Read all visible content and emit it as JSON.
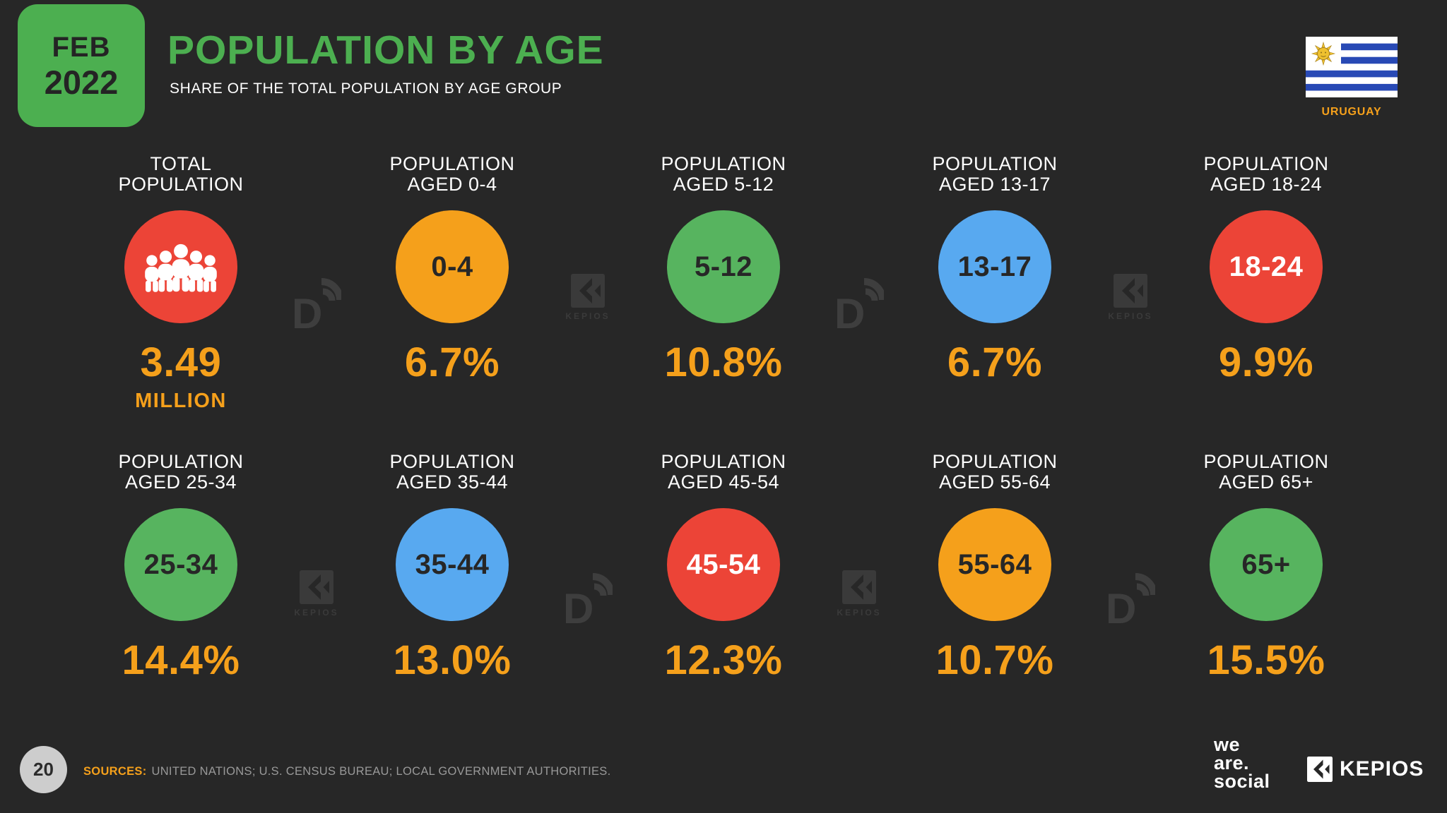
{
  "header": {
    "date_month": "FEB",
    "date_year": "2022",
    "title": "POPULATION BY AGE",
    "subtitle": "SHARE OF THE TOTAL POPULATION BY AGE GROUP",
    "country": "URUGUAY"
  },
  "cards": [
    {
      "title_line1": "TOTAL",
      "title_line2": "POPULATION",
      "circle_color": "red",
      "icon": "people-icon",
      "circle_label": "",
      "value": "3.49",
      "value_suffix": "MILLION"
    },
    {
      "title_line1": "POPULATION",
      "title_line2": "AGED 0-4",
      "circle_color": "orange",
      "circle_label": "0-4",
      "value": "6.7%"
    },
    {
      "title_line1": "POPULATION",
      "title_line2": "AGED 5-12",
      "circle_color": "green",
      "circle_label": "5-12",
      "value": "10.8%"
    },
    {
      "title_line1": "POPULATION",
      "title_line2": "AGED 13-17",
      "circle_color": "blue",
      "circle_label": "13-17",
      "value": "6.7%"
    },
    {
      "title_line1": "POPULATION",
      "title_line2": "AGED 18-24",
      "circle_color": "red",
      "circle_label": "18-24",
      "value": "9.9%"
    },
    {
      "title_line1": "POPULATION",
      "title_line2": "AGED 25-34",
      "circle_color": "green",
      "circle_label": "25-34",
      "value": "14.4%"
    },
    {
      "title_line1": "POPULATION",
      "title_line2": "AGED 35-44",
      "circle_color": "blue",
      "circle_label": "35-44",
      "value": "13.0%"
    },
    {
      "title_line1": "POPULATION",
      "title_line2": "AGED 45-54",
      "circle_color": "red",
      "circle_label": "45-54",
      "value": "12.3%"
    },
    {
      "title_line1": "POPULATION",
      "title_line2": "AGED 55-64",
      "circle_color": "orange",
      "circle_label": "55-64",
      "value": "10.7%"
    },
    {
      "title_line1": "POPULATION",
      "title_line2": "AGED 65+",
      "circle_color": "green",
      "circle_label": "65+",
      "value": "15.5%"
    }
  ],
  "watermarks": [
    {
      "kind": "datareportal"
    },
    {
      "kind": "kepios",
      "label": "KEPIOS"
    },
    {
      "kind": "datareportal"
    },
    {
      "kind": "kepios",
      "label": "KEPIOS"
    },
    {
      "kind": "kepios",
      "label": "KEPIOS"
    },
    {
      "kind": "datareportal"
    },
    {
      "kind": "kepios",
      "label": "KEPIOS"
    },
    {
      "kind": "datareportal"
    }
  ],
  "footer": {
    "page_number": "20",
    "sources_label": "SOURCES:",
    "sources_text": "UNITED NATIONS; U.S. CENSUS BUREAU; LOCAL GOVERNMENT AUTHORITIES.",
    "wearesocial_line1": "we",
    "wearesocial_line2": "are.",
    "wearesocial_line3": "social",
    "kepios_label": "KEPIOS"
  },
  "colors": {
    "background": "#272727",
    "brand_green": "#4CAF50",
    "green": "#57B45F",
    "orange": "#F5A01B",
    "red": "#EC4437",
    "blue": "#58A9F0",
    "white": "#FFFFFF",
    "dark_text": "#272727",
    "watermark_gray": "#3D3D3D",
    "sources_gray": "#999999",
    "page_circle": "#CDCDCD"
  },
  "icons": {
    "total_population": "people-icon",
    "flag": "uruguay-flag-icon",
    "kepios_mark": "kepios-mark-icon",
    "datareportal_mark": "datareportal-mark-icon"
  },
  "chart_data": {
    "type": "table",
    "title": "POPULATION BY AGE",
    "subtitle": "SHARE OF THE TOTAL POPULATION BY AGE GROUP",
    "country": "URUGUAY",
    "date": "FEB 2022",
    "total_population": "3.49 MILLION",
    "categories": [
      "0-4",
      "5-12",
      "13-17",
      "18-24",
      "25-34",
      "35-44",
      "45-54",
      "55-64",
      "65+"
    ],
    "values_percent": [
      6.7,
      10.8,
      6.7,
      9.9,
      14.4,
      13.0,
      12.3,
      10.7,
      15.5
    ],
    "unit": "% of total population",
    "sources": "UNITED NATIONS; U.S. CENSUS BUREAU; LOCAL GOVERNMENT AUTHORITIES."
  }
}
